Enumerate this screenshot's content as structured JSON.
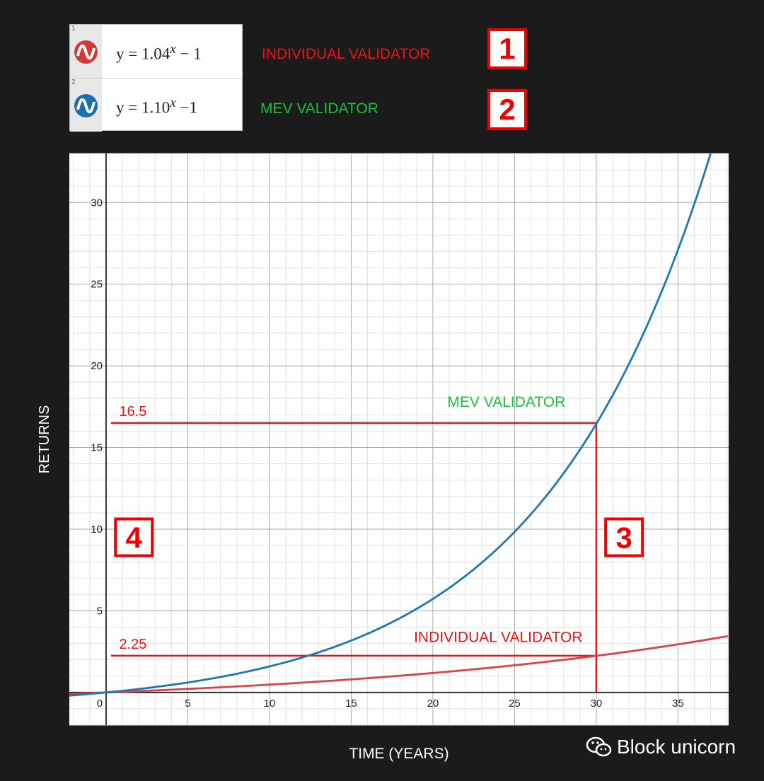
{
  "legend": [
    {
      "index": "1",
      "expression_base": "y = 1.04",
      "expression_exp": "x",
      "expression_tail": " − 1",
      "color": "#d23a3a",
      "label": "INDIVIDUAL VALIDATOR",
      "label_color": "#e8141a",
      "marker": "1"
    },
    {
      "index": "2",
      "expression_base": "y =  1.10",
      "expression_exp": "x",
      "expression_tail": " −1",
      "color": "#1a6fb0",
      "label": "MEV VALIDATOR",
      "label_color": "#19c23a",
      "marker": "2"
    }
  ],
  "watermark": "Block unicorn",
  "chart_data": {
    "type": "line",
    "xlabel": "TIME (YEARS)",
    "ylabel": "RETURNS",
    "xlim": [
      -2.25,
      38.1
    ],
    "ylim": [
      -2,
      33
    ],
    "xticks": [
      0,
      5,
      10,
      15,
      20,
      25,
      30,
      35
    ],
    "yticks": [
      5,
      10,
      15,
      20,
      25,
      30
    ],
    "grid": true,
    "series": [
      {
        "name": "INDIVIDUAL VALIDATOR",
        "formula": "1.04^x - 1",
        "base": 1.04,
        "color": "#d9414c"
      },
      {
        "name": "MEV VALIDATOR",
        "formula": "1.10^x - 1",
        "base": 1.1,
        "color": "#1f77b4"
      }
    ],
    "annotations": [
      {
        "text": "16.5",
        "y": 16.5,
        "x_end": 30,
        "color": "#e8141a"
      },
      {
        "text": "2.25",
        "y": 2.25,
        "x_end": 30,
        "color": "#e8141a"
      },
      {
        "text": "MEV VALIDATOR",
        "x": 24.5,
        "y": 17.5,
        "color": "#19c23a"
      },
      {
        "text": "INDIVIDUAL VALIDATOR",
        "x": 24,
        "y": 3.1,
        "color": "#e8141a"
      }
    ],
    "vertical_line": {
      "x": 30,
      "color": "#e8141a"
    },
    "markers": [
      {
        "text": "3",
        "x": 31.7,
        "y": 9.5
      },
      {
        "text": "4",
        "x": 1.7,
        "y": 9.5
      }
    ]
  }
}
